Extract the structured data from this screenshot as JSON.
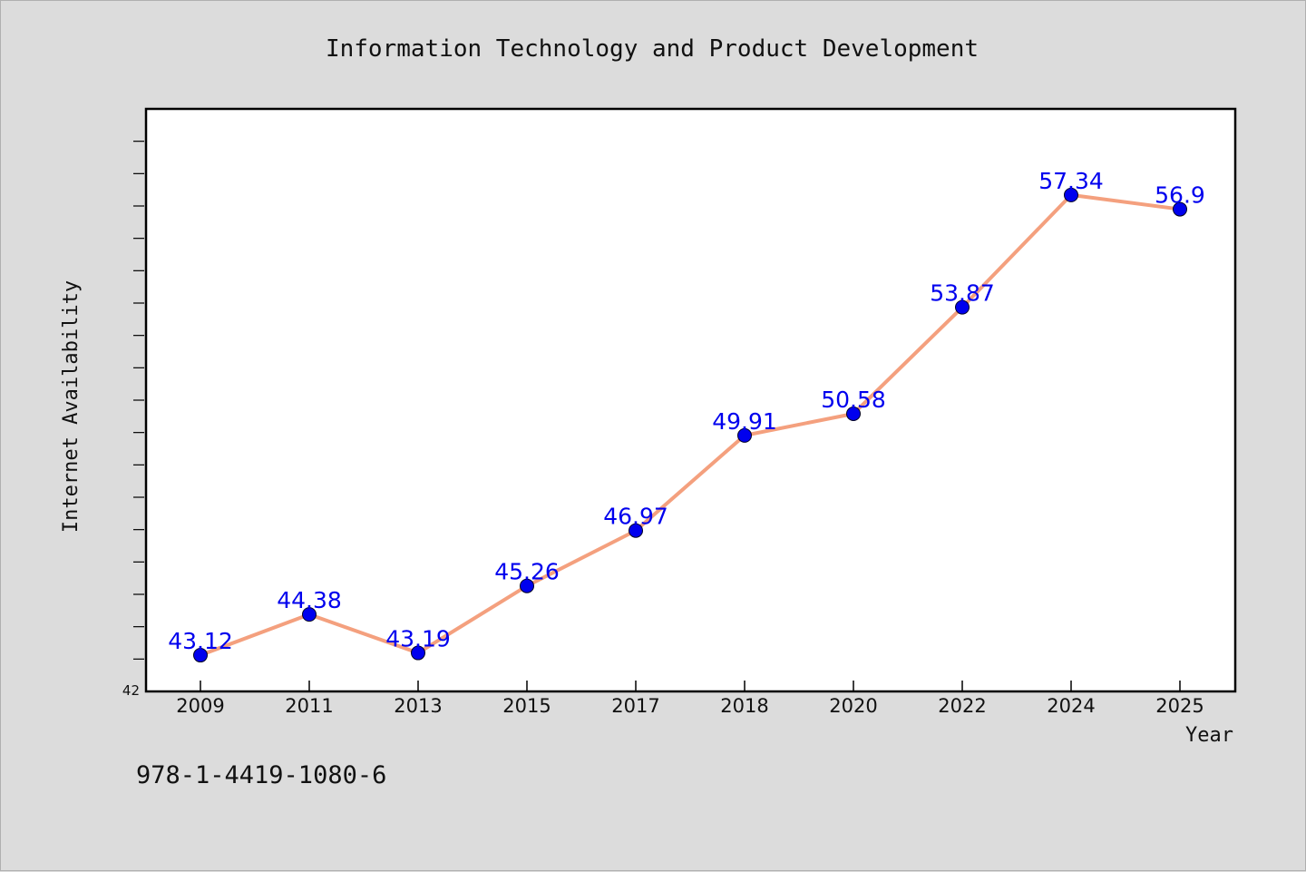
{
  "chart_data": {
    "type": "line",
    "title": "Information Technology and Product Development",
    "xlabel": "Year",
    "ylabel": "Internet Availability",
    "categories": [
      "2009",
      "2011",
      "2013",
      "2015",
      "2017",
      "2018",
      "2020",
      "2022",
      "2024",
      "2025"
    ],
    "series": [
      {
        "values": [
          43.12,
          44.38,
          43.19,
          45.26,
          46.97,
          49.91,
          50.58,
          53.87,
          57.34,
          56.9
        ],
        "data_labels": [
          "43.12",
          "44.38",
          "43.19",
          "45.26",
          "46.97",
          "49.91",
          "50.58",
          "53.87",
          "57.34",
          "56.9"
        ],
        "line_color": "#f4a07e",
        "marker_color": "#0000ee"
      }
    ],
    "ylim": [
      42,
      60
    ],
    "y_tick_labels": [
      "42"
    ],
    "grid": false,
    "legend": "none"
  },
  "footer": {
    "code": "978-1-4419-1080-6"
  },
  "colors": {
    "background": "#dcdcdc",
    "plot_background": "#ffffff"
  }
}
